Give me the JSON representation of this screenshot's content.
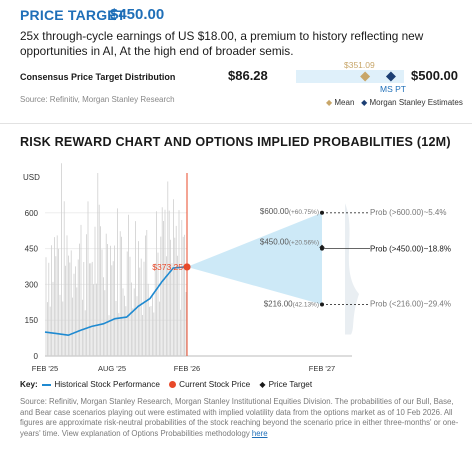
{
  "header": {
    "price_target_label": "PRICE TARGET",
    "price_target_value": "$450.00",
    "description": "25x through-cycle earnings of US $18.00, a premium to history reflecting new opportunities in AI, At the high end of broader semis."
  },
  "consensus": {
    "title": "Consensus Price Target Distribution",
    "source": "Source: Refinitiv, Morgan Stanley Research",
    "low": "$86.28",
    "high": "$500.00",
    "mean_value": "$351.09",
    "mean_level": 351.09,
    "ms_pt_label": "MS PT",
    "ms_pt_level": 450.0,
    "range_min": 86.28,
    "range_max": 500.0,
    "legend": [
      "Mean",
      "Morgan Stanley Estimates"
    ],
    "colors": {
      "bar": "#dff0fa",
      "mean": "#c8a669",
      "ms": "#1c3f74"
    }
  },
  "chart_title": "RISK REWARD CHART AND OPTIONS IMPLIED PROBABILITIES (12M)",
  "chart_data": {
    "type": "line",
    "ylabel": "USD",
    "yticks": [
      0,
      150,
      300,
      450,
      600
    ],
    "ylim": [
      0,
      750
    ],
    "xtick_labels": [
      "FEB '25",
      "AUG '25",
      "FEB '26",
      "FEB '27"
    ],
    "series": [
      {
        "name": "Historical Stock Performance",
        "x": [
          "2025-02",
          "2025-03",
          "2025-04",
          "2025-05",
          "2025-06",
          "2025-07",
          "2025-08",
          "2025-09",
          "2025-10",
          "2025-11",
          "2025-12",
          "2026-01",
          "2026-02"
        ],
        "values": [
          100,
          95,
          85,
          110,
          120,
          140,
          150,
          170,
          200,
          250,
          300,
          380,
          373.25
        ]
      }
    ],
    "current_price": {
      "label": "$373.25",
      "value": 373.25,
      "date": "2026-02"
    },
    "scenarios": [
      {
        "label": "$600.00",
        "pct": "(+60.75%)",
        "value": 600,
        "prob": "Prob (>600.00)~5.4%"
      },
      {
        "label": "$450.00",
        "pct": "(+20.56%)",
        "value": 450,
        "prob": "Prob (>450.00)~18.8%"
      },
      {
        "label": "$216.00",
        "pct": "(42.13%)",
        "value": 216,
        "prob": "Prob (<216.00)~29.4%"
      }
    ],
    "colors": {
      "line": "#1f8ad1",
      "volume": "#cfcfcf",
      "current": "#e8492a",
      "cone": "#cde9f7",
      "target": "#1a1a1a",
      "divider": "#e8492a"
    }
  },
  "key": {
    "label": "Key:",
    "items": [
      "Historical Stock Performance",
      "Current Stock Price",
      "Price Target"
    ]
  },
  "footnote": {
    "text": "Source: Refinitiv, Morgan Stanley Research, Morgan Stanley Institutional Equities Division. The probabilities of our Bull, Base, and Bear case scenarios playing out were estimated with implied volatility data from the options market as of 10 Feb 2026. All figures are approximate risk-neutral probabilities of the stock reaching beyond the scenario price in either three-months' or one-years' time. View explanation of Options Probabilities methodology",
    "link": "here"
  }
}
